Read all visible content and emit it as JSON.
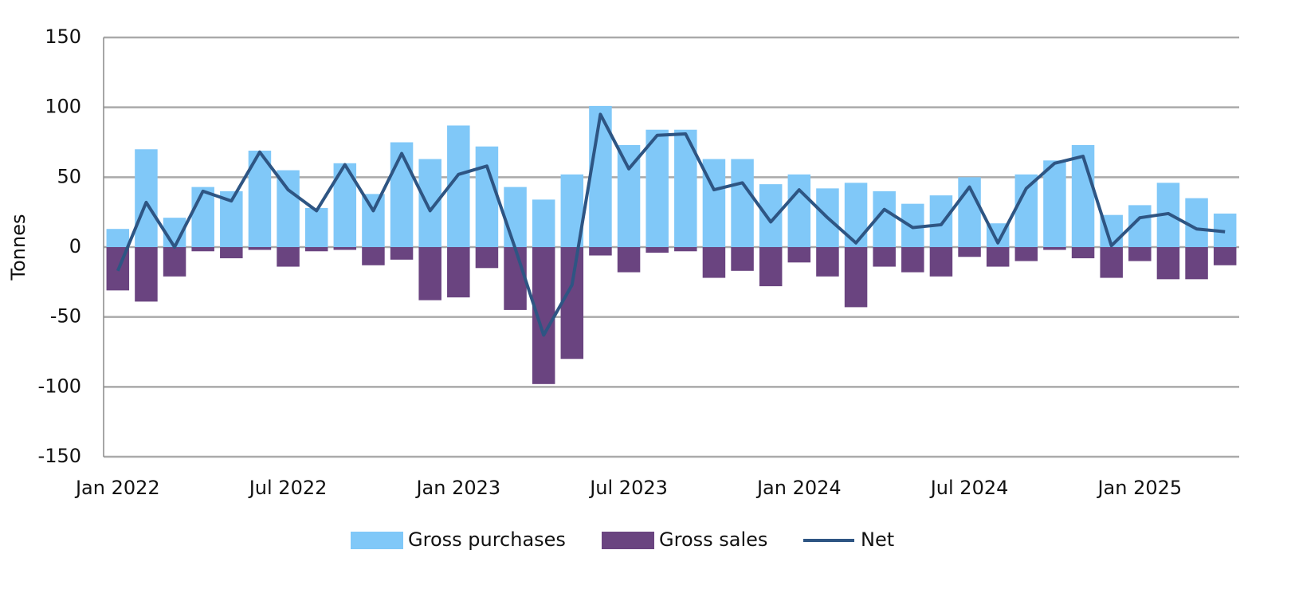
{
  "chart_data": {
    "type": "bar-line",
    "ylabel": "Tonnes",
    "categories": [
      "Jan 2022",
      null,
      null,
      null,
      null,
      null,
      "Jul 2022",
      null,
      null,
      null,
      null,
      null,
      "Jan 2023",
      null,
      null,
      null,
      null,
      null,
      "Jul 2023",
      null,
      null,
      null,
      null,
      null,
      "Jan 2024",
      null,
      null,
      null,
      null,
      null,
      "Jul 2024",
      null,
      null,
      null,
      null,
      null,
      "Jan 2025",
      null,
      null,
      null
    ],
    "series": [
      {
        "name": "Gross purchases",
        "color": "#80c8f8",
        "type": "bar",
        "values": [
          13,
          70,
          21,
          43,
          40,
          69,
          55,
          28,
          60,
          38,
          75,
          63,
          87,
          72,
          43,
          34,
          52,
          101,
          73,
          84,
          84,
          63,
          63,
          45,
          52,
          42,
          46,
          40,
          31,
          37,
          50,
          17,
          52,
          62,
          73,
          23,
          30,
          46,
          35,
          24
        ]
      },
      {
        "name": "Gross sales",
        "color": "#6a4480",
        "type": "bar",
        "values": [
          -31,
          -39,
          -21,
          -3,
          -8,
          -2,
          -14,
          -3,
          -2,
          -13,
          -9,
          -38,
          -36,
          -15,
          -45,
          -98,
          -80,
          -6,
          -18,
          -4,
          -3,
          -22,
          -17,
          -28,
          -11,
          -21,
          -43,
          -14,
          -18,
          -21,
          -7,
          -14,
          -10,
          -2,
          -8,
          -22,
          -10,
          -23,
          -23,
          -13
        ]
      },
      {
        "name": "Net",
        "color": "#2e5583",
        "type": "line",
        "values": [
          -17,
          32,
          0,
          40,
          33,
          68,
          41,
          26,
          59,
          26,
          67,
          26,
          52,
          58,
          -1,
          -63,
          -27,
          95,
          56,
          80,
          81,
          41,
          46,
          18,
          41,
          21,
          3,
          27,
          14,
          16,
          43,
          3,
          42,
          60,
          65,
          1,
          21,
          24,
          13,
          11
        ]
      }
    ],
    "ylim": [
      -150,
      150
    ],
    "yticks": [
      -150,
      -100,
      -50,
      0,
      50,
      100,
      150
    ],
    "grid": true
  }
}
